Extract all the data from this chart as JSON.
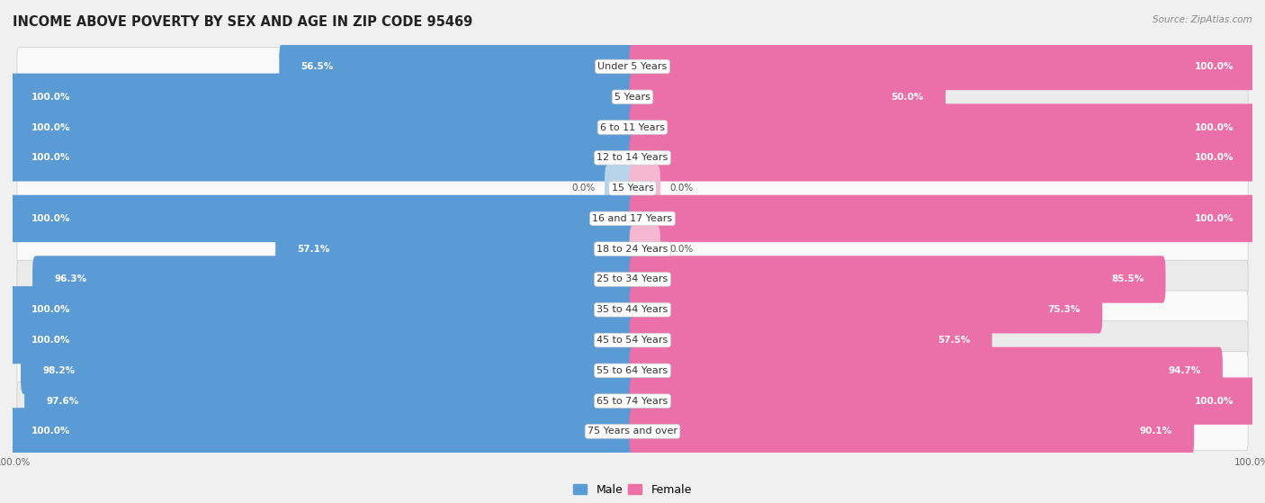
{
  "title": "INCOME ABOVE POVERTY BY SEX AND AGE IN ZIP CODE 95469",
  "source": "Source: ZipAtlas.com",
  "categories": [
    "Under 5 Years",
    "5 Years",
    "6 to 11 Years",
    "12 to 14 Years",
    "15 Years",
    "16 and 17 Years",
    "18 to 24 Years",
    "25 to 34 Years",
    "35 to 44 Years",
    "45 to 54 Years",
    "55 to 64 Years",
    "65 to 74 Years",
    "75 Years and over"
  ],
  "male_values": [
    56.5,
    100.0,
    100.0,
    100.0,
    0.0,
    100.0,
    57.1,
    96.3,
    100.0,
    100.0,
    98.2,
    97.6,
    100.0
  ],
  "female_values": [
    100.0,
    50.0,
    100.0,
    100.0,
    0.0,
    100.0,
    0.0,
    85.5,
    75.3,
    57.5,
    94.7,
    100.0,
    90.1
  ],
  "male_color": "#5b9bd5",
  "female_color": "#eb6fa8",
  "male_color_light": "#b8d4ea",
  "female_color_light": "#f5b8d0",
  "bg_color": "#f0f0f0",
  "row_bg_even": "#f9f9f9",
  "row_bg_odd": "#ebebeb",
  "title_fontsize": 10.5,
  "label_fontsize": 8.0,
  "value_fontsize": 7.5,
  "axis_label_fontsize": 7.5,
  "legend_fontsize": 9.0
}
